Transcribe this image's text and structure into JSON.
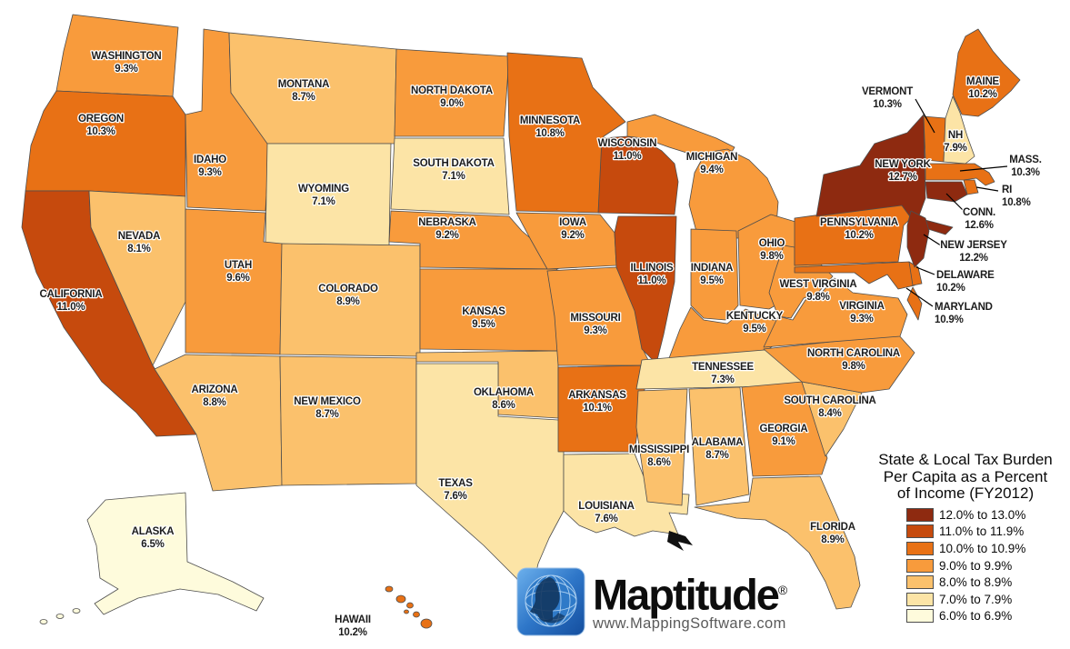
{
  "title": {
    "line1": "State & Local Tax Burden",
    "line2": "Per Capita as a Percent",
    "line3": "of Income (FY2012)"
  },
  "legend": [
    {
      "label": "12.0% to 13.0%",
      "color": "#8E2A10"
    },
    {
      "label": "11.0% to 11.9%",
      "color": "#C64A0D"
    },
    {
      "label": "10.0% to 10.9%",
      "color": "#E87115"
    },
    {
      "label": "9.0% to 9.9%",
      "color": "#F89B3C"
    },
    {
      "label": "8.0% to 8.9%",
      "color": "#FBC16C"
    },
    {
      "label": "7.0% to 7.9%",
      "color": "#FCE4A6"
    },
    {
      "label": "6.0% to 6.9%",
      "color": "#FEFBDC"
    }
  ],
  "branding": {
    "name": "Maptitude",
    "registered": "®",
    "url": "www.MappingSoftware.com",
    "icon": "globe-head-logo"
  },
  "chart_data": {
    "type": "heatmap",
    "title": "State & Local Tax Burden Per Capita as a Percent of Income (FY2012)",
    "legend_position": "right-bottom",
    "categories_legend": [
      "12.0% to 13.0%",
      "11.0% to 11.9%",
      "10.0% to 10.9%",
      "9.0% to 9.9%",
      "8.0% to 8.9%",
      "7.0% to 7.9%",
      "6.0% to 6.9%"
    ]
  },
  "states": [
    {
      "id": "WA",
      "name": "WASHINGTON",
      "value": "9.3%",
      "cat": 3
    },
    {
      "id": "OR",
      "name": "OREGON",
      "value": "10.3%",
      "cat": 2
    },
    {
      "id": "CA",
      "name": "CALIFORNIA",
      "value": "11.0%",
      "cat": 1
    },
    {
      "id": "NV",
      "name": "NEVADA",
      "value": "8.1%",
      "cat": 4
    },
    {
      "id": "ID",
      "name": "IDAHO",
      "value": "9.3%",
      "cat": 3
    },
    {
      "id": "MT",
      "name": "MONTANA",
      "value": "8.7%",
      "cat": 4
    },
    {
      "id": "WY",
      "name": "WYOMING",
      "value": "7.1%",
      "cat": 5
    },
    {
      "id": "UT",
      "name": "UTAH",
      "value": "9.6%",
      "cat": 3
    },
    {
      "id": "CO",
      "name": "COLORADO",
      "value": "8.9%",
      "cat": 4
    },
    {
      "id": "AZ",
      "name": "ARIZONA",
      "value": "8.8%",
      "cat": 4
    },
    {
      "id": "NM",
      "name": "NEW MEXICO",
      "value": "8.7%",
      "cat": 4
    },
    {
      "id": "ND",
      "name": "NORTH DAKOTA",
      "value": "9.0%",
      "cat": 3
    },
    {
      "id": "SD",
      "name": "SOUTH DAKOTA",
      "value": "7.1%",
      "cat": 5
    },
    {
      "id": "NE",
      "name": "NEBRASKA",
      "value": "9.2%",
      "cat": 3
    },
    {
      "id": "KS",
      "name": "KANSAS",
      "value": "9.5%",
      "cat": 3
    },
    {
      "id": "OK",
      "name": "OKLAHOMA",
      "value": "8.6%",
      "cat": 4
    },
    {
      "id": "TX",
      "name": "TEXAS",
      "value": "7.6%",
      "cat": 5
    },
    {
      "id": "MN",
      "name": "MINNESOTA",
      "value": "10.8%",
      "cat": 2
    },
    {
      "id": "IA",
      "name": "IOWA",
      "value": "9.2%",
      "cat": 3
    },
    {
      "id": "MO",
      "name": "MISSOURI",
      "value": "9.3%",
      "cat": 3
    },
    {
      "id": "AR",
      "name": "ARKANSAS",
      "value": "10.1%",
      "cat": 2
    },
    {
      "id": "LA",
      "name": "LOUISIANA",
      "value": "7.6%",
      "cat": 5
    },
    {
      "id": "WI",
      "name": "WISCONSIN",
      "value": "11.0%",
      "cat": 1
    },
    {
      "id": "IL",
      "name": "ILLINOIS",
      "value": "11.0%",
      "cat": 1
    },
    {
      "id": "MI",
      "name": "MICHIGAN",
      "value": "9.4%",
      "cat": 3
    },
    {
      "id": "IN",
      "name": "INDIANA",
      "value": "9.5%",
      "cat": 3
    },
    {
      "id": "OH",
      "name": "OHIO",
      "value": "9.8%",
      "cat": 3
    },
    {
      "id": "KY",
      "name": "KENTUCKY",
      "value": "9.5%",
      "cat": 3
    },
    {
      "id": "TN",
      "name": "TENNESSEE",
      "value": "7.3%",
      "cat": 5
    },
    {
      "id": "MS",
      "name": "MISSISSIPPI",
      "value": "8.6%",
      "cat": 4
    },
    {
      "id": "AL",
      "name": "ALABAMA",
      "value": "8.7%",
      "cat": 4
    },
    {
      "id": "GA",
      "name": "GEORGIA",
      "value": "9.1%",
      "cat": 3
    },
    {
      "id": "FL",
      "name": "FLORIDA",
      "value": "8.9%",
      "cat": 4
    },
    {
      "id": "SC",
      "name": "SOUTH CAROLINA",
      "value": "8.4%",
      "cat": 4
    },
    {
      "id": "NC",
      "name": "NORTH CAROLINA",
      "value": "9.8%",
      "cat": 3
    },
    {
      "id": "VA",
      "name": "VIRGINIA",
      "value": "9.3%",
      "cat": 3
    },
    {
      "id": "WV",
      "name": "WEST VIRGINIA",
      "value": "9.8%",
      "cat": 3
    },
    {
      "id": "PA",
      "name": "PENNSYLVANIA",
      "value": "10.2%",
      "cat": 2
    },
    {
      "id": "MD",
      "name": "MARYLAND",
      "value": "10.9%",
      "cat": 2
    },
    {
      "id": "DE",
      "name": "DELAWARE",
      "value": "10.2%",
      "cat": 2
    },
    {
      "id": "NJ",
      "name": "NEW JERSEY",
      "value": "12.2%",
      "cat": 0
    },
    {
      "id": "NY",
      "name": "NEW YORK",
      "value": "12.7%",
      "cat": 0
    },
    {
      "id": "CT",
      "name": "CONN.",
      "value": "12.6%",
      "cat": 0
    },
    {
      "id": "RI",
      "name": "RI",
      "value": "10.8%",
      "cat": 2
    },
    {
      "id": "MA",
      "name": "MASS.",
      "value": "10.3%",
      "cat": 2
    },
    {
      "id": "VT",
      "name": "VERMONT",
      "value": "10.3%",
      "cat": 2
    },
    {
      "id": "NH",
      "name": "NH",
      "value": "7.9%",
      "cat": 5
    },
    {
      "id": "ME",
      "name": "MAINE",
      "value": "10.2%",
      "cat": 2
    },
    {
      "id": "AK",
      "name": "ALASKA",
      "value": "6.5%",
      "cat": 6
    },
    {
      "id": "HI",
      "name": "HAWAII",
      "value": "10.2%",
      "cat": 2
    }
  ]
}
